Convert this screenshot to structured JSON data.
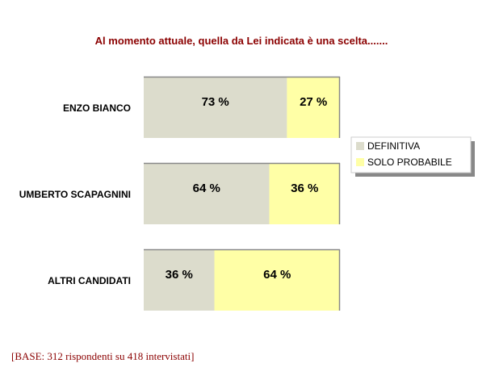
{
  "chart_data": {
    "type": "bar",
    "orientation": "horizontal",
    "stacked": true,
    "title": "Al momento attuale, quella da Lei indicata è una scelta.......",
    "categories": [
      "ENZO BIANCO",
      "UMBERTO SCAPAGNINI",
      "ALTRI CANDIDATI"
    ],
    "series": [
      {
        "name": "DEFINITIVA",
        "values": [
          73,
          64,
          36
        ],
        "labels": [
          "73 %",
          "64 %",
          "36 %"
        ],
        "color": "#dcdccc"
      },
      {
        "name": "SOLO PROBABILE",
        "values": [
          27,
          36,
          64
        ],
        "labels": [
          "27 %",
          "36 %",
          "64 %"
        ],
        "color": "#ffffa6"
      }
    ],
    "xlim": [
      0,
      100
    ],
    "grid": false,
    "legend": "right",
    "note": "[BASE: 312 rispondenti su 418 intervistati]",
    "colors": {
      "title": "#8b0000",
      "note": "#8b0000",
      "text": "#000000"
    }
  }
}
